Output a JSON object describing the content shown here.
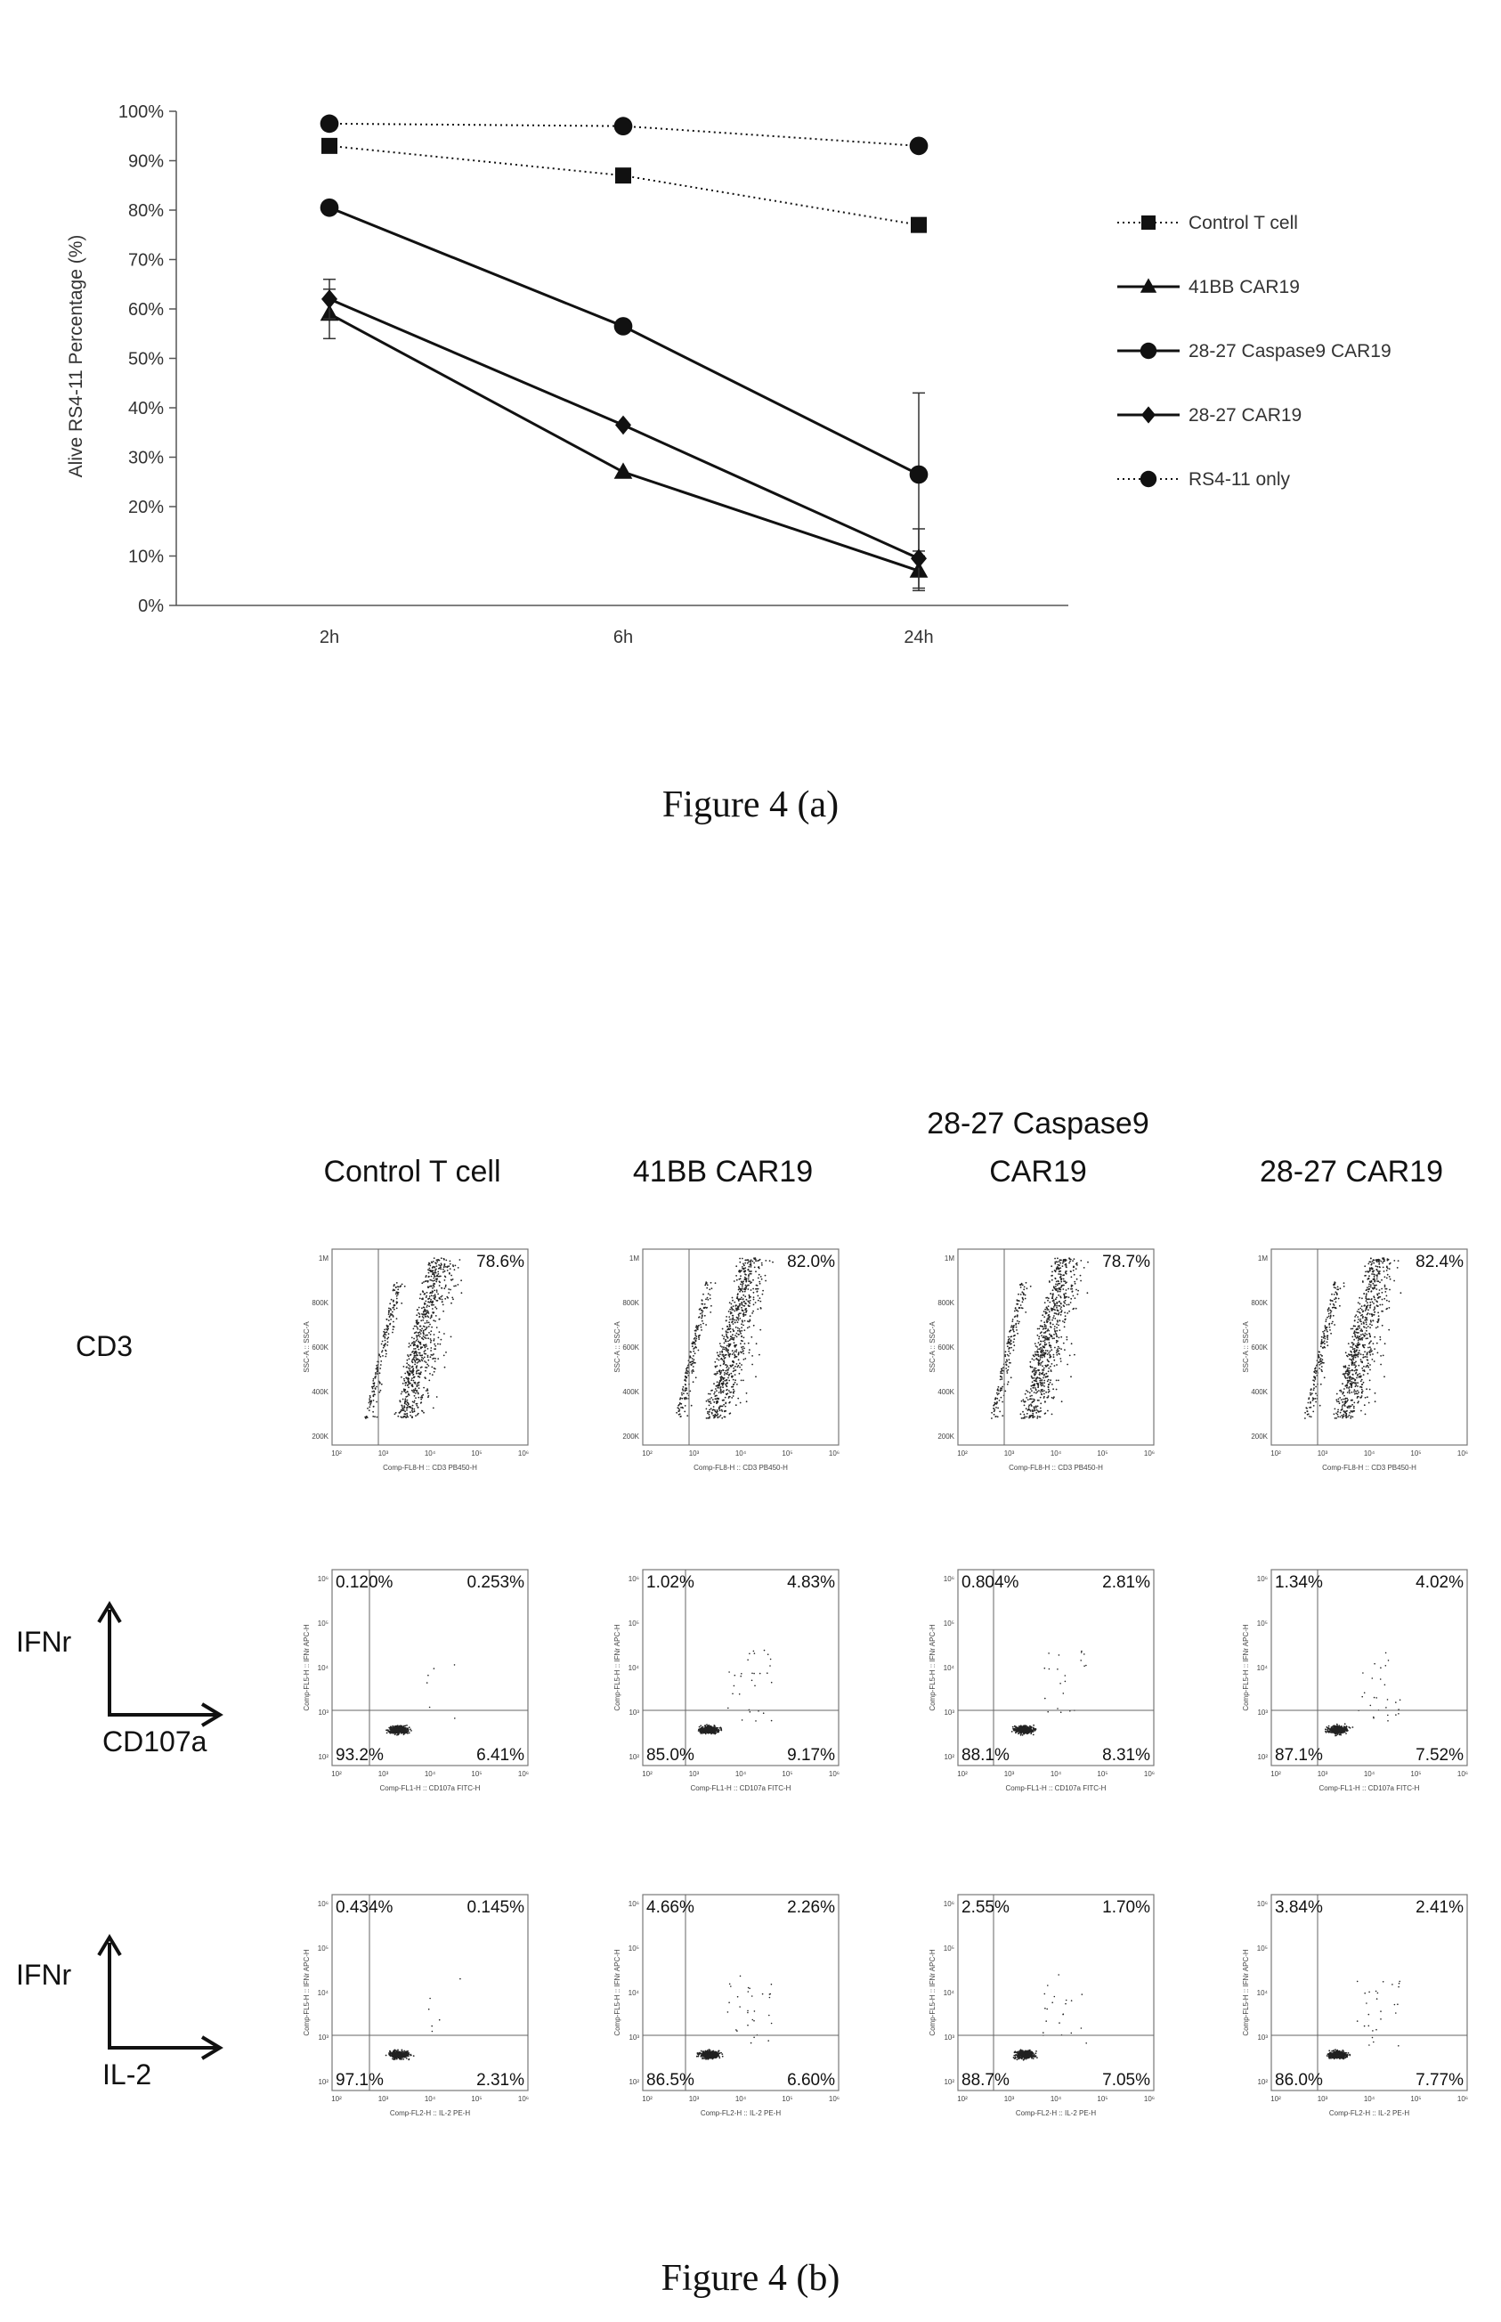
{
  "chart_data": [
    {
      "type": "line",
      "title": "",
      "xlabel": "",
      "ylabel": "Alive RS4-11 Percentage (%)",
      "categories": [
        "2h",
        "6h",
        "24h"
      ],
      "ylim": [
        0,
        100
      ],
      "yticks": [
        "0%",
        "10%",
        "20%",
        "30%",
        "40%",
        "50%",
        "60%",
        "70%",
        "80%",
        "90%",
        "100%"
      ],
      "legend_position": "right",
      "series": [
        {
          "name": "Control T cell",
          "marker": "square",
          "line": "dotted",
          "values": [
            93,
            87,
            77
          ],
          "error": [
            0,
            0,
            0
          ]
        },
        {
          "name": "41BB CAR19",
          "marker": "triangle",
          "line": "solid",
          "values": [
            59,
            27,
            7
          ],
          "error": [
            5,
            0,
            4
          ]
        },
        {
          "name": "28-27 Caspase9 CAR19",
          "marker": "circle",
          "line": "solid",
          "values": [
            80.5,
            56.5,
            26.5
          ],
          "error": [
            0,
            0,
            16.5
          ]
        },
        {
          "name": "28-27 CAR19",
          "marker": "diamond",
          "line": "solid",
          "values": [
            62,
            36.5,
            9.5
          ],
          "error": [
            4,
            0,
            6
          ]
        },
        {
          "name": "RS4-11 only",
          "marker": "circle",
          "line": "dotted",
          "values": [
            97.5,
            97,
            93
          ],
          "error": [
            0,
            0,
            0
          ]
        }
      ]
    }
  ],
  "captions": {
    "a": "Figure 4 (a)",
    "b": "Figure 4 (b)"
  },
  "flow": {
    "columns": [
      {
        "line1": "",
        "line2": "Control T cell"
      },
      {
        "line1": "",
        "line2": "41BB CAR19"
      },
      {
        "line1": "28-27 Caspase9",
        "line2": "CAR19"
      },
      {
        "line1": "",
        "line2": "28-27 CAR19"
      }
    ],
    "rows": [
      {
        "label": "CD3",
        "y_axis": "",
        "x_axis": ""
      },
      {
        "label": "",
        "y_axis": "IFNr",
        "x_axis": "CD107a"
      },
      {
        "label": "",
        "y_axis": "IFNr",
        "x_axis": "IL-2"
      }
    ],
    "panels": [
      [
        {
          "tr": "78.6%"
        },
        {
          "tr": "82.0%"
        },
        {
          "tr": "78.7%"
        },
        {
          "tr": "82.4%"
        }
      ],
      [
        {
          "tl": "0.120%",
          "tr": "0.253%",
          "bl": "93.2%",
          "br": "6.41%"
        },
        {
          "tl": "1.02%",
          "tr": "4.83%",
          "bl": "85.0%",
          "br": "9.17%"
        },
        {
          "tl": "0.804%",
          "tr": "2.81%",
          "bl": "88.1%",
          "br": "8.31%"
        },
        {
          "tl": "1.34%",
          "tr": "4.02%",
          "bl": "87.1%",
          "br": "7.52%"
        }
      ],
      [
        {
          "tl": "0.434%",
          "tr": "0.145%",
          "bl": "97.1%",
          "br": "2.31%"
        },
        {
          "tl": "4.66%",
          "tr": "2.26%",
          "bl": "86.5%",
          "br": "6.60%"
        },
        {
          "tl": "2.55%",
          "tr": "1.70%",
          "bl": "88.7%",
          "br": "7.05%"
        },
        {
          "tl": "3.84%",
          "tr": "2.41%",
          "bl": "86.0%",
          "br": "7.77%"
        }
      ]
    ],
    "panel_axis_captions": {
      "cd3_y": "SSC-A :: SSC-A",
      "cd3_x": "Comp-FL8-H :: CD3 PB450-H",
      "cd107a_y": "Comp-FL5-H :: IFNr APC-H",
      "cd107a_x": "Comp-FL1-H :: CD107a FITC-H",
      "il2_y": "Comp-FL5-H :: IFNr APC-H",
      "il2_x": "Comp-FL2-H :: IL-2 PE-H"
    },
    "cd3_yticks": [
      "1M",
      "800K",
      "600K",
      "400K",
      "200K"
    ],
    "log_xticks": [
      "10²",
      "10³",
      "10⁴",
      "10⁵",
      "10⁶"
    ],
    "log_yticks": [
      "10⁶",
      "10⁵",
      "10⁴",
      "10³",
      "10²"
    ]
  }
}
